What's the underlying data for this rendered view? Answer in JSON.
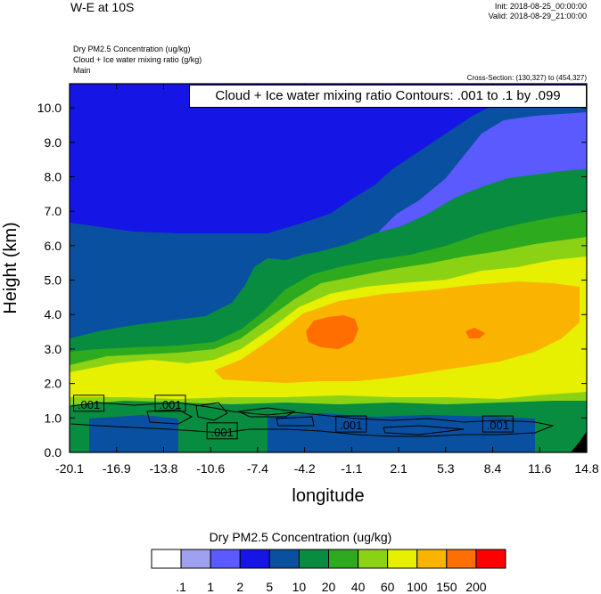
{
  "header": {
    "title": "W-E at 10S",
    "init": "Init: 2018-08-25_00:00:00",
    "valid": "Valid: 2018-08-29_21:00:00"
  },
  "descriptions": [
    "Dry PM2.5 Concentration   (ug/kg)",
    "Cloud + Ice water mixing ratio   (g/kg)",
    "Main"
  ],
  "cross_section": "Cross-Section: (130,327) to (454,327)",
  "contour_info": "Cloud + Ice water mixing ratio Contours: .001 to .1 by .099",
  "colorbar": {
    "title": "Dry PM2.5 Concentration  (ug/kg)",
    "labels": [
      ".1",
      "1",
      "2",
      "5",
      "10",
      "20",
      "40",
      "60",
      "100",
      "150",
      "200"
    ],
    "colors": [
      "#ffffff",
      "#a0a0f0",
      "#5a5aff",
      "#1515e6",
      "#0a50a0",
      "#078c40",
      "#2daa1e",
      "#8cd214",
      "#e6f000",
      "#fab400",
      "#ff6e00",
      "#ff0000"
    ]
  },
  "chart_data": {
    "type": "heatmap",
    "title": "W-E at 10S",
    "xlabel": "longitude",
    "ylabel": "Height (km)",
    "x_ticks": [
      "-20.1",
      "-16.9",
      "-13.8",
      "-10.6",
      "-7.4",
      "-4.2",
      "-1.1",
      "2.1",
      "5.3",
      "8.4",
      "11.6",
      "14.8"
    ],
    "y_ticks": [
      "0.0",
      "1.0",
      "2.0",
      "3.0",
      "4.0",
      "5.0",
      "6.0",
      "7.0",
      "8.0",
      "9.0",
      "10.0"
    ],
    "xlim": [
      -20.1,
      14.8
    ],
    "ylim": [
      0,
      10.7
    ],
    "contour_labels": [
      {
        "text": ".001",
        "x": -18.8,
        "y": 1.4
      },
      {
        "text": ".001",
        "x": -13.3,
        "y": 1.4
      },
      {
        "text": ".001",
        "x": -9.8,
        "y": 0.6
      },
      {
        "text": ".001",
        "x": -1.1,
        "y": 0.8
      },
      {
        "text": ".001",
        "x": 8.8,
        "y": 0.8
      }
    ]
  }
}
